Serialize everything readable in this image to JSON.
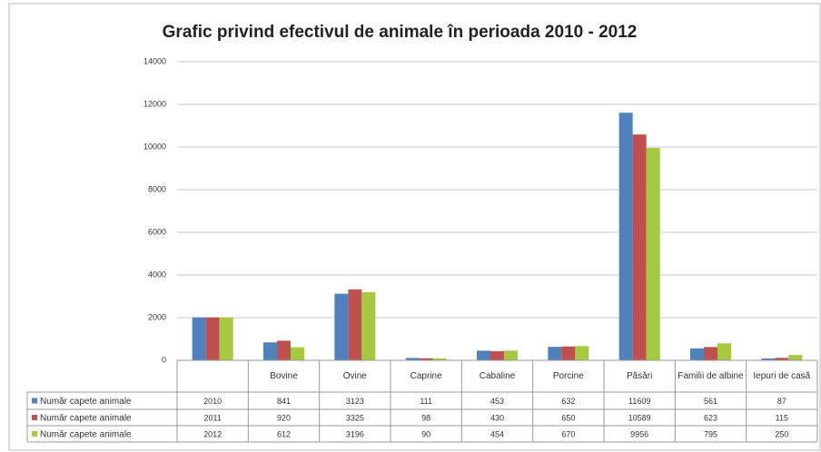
{
  "chart_data": {
    "type": "bar",
    "title": "Grafic privind efectivul de animale în perioada 2010 - 2012",
    "categories": [
      null,
      "Bovine",
      "Ovine",
      "Caprine",
      "Cabaline",
      "Porcine",
      "Păsări",
      "Familii de albine",
      "Iepuri de casă"
    ],
    "series": [
      {
        "name": "Număr capete animale",
        "color": "#4f81bd",
        "values": [
          2010,
          841,
          3123,
          111,
          453,
          632,
          11609,
          561,
          87
        ]
      },
      {
        "name": "Număr capete animale",
        "color": "#c0504d",
        "values": [
          2011,
          920,
          3325,
          98,
          430,
          650,
          10589,
          623,
          115
        ]
      },
      {
        "name": "Număr capete animale",
        "color": "#a5c940",
        "values": [
          2012,
          612,
          3196,
          90,
          454,
          670,
          9956,
          795,
          250
        ]
      }
    ],
    "ylim": [
      0,
      14000
    ],
    "yticks": [
      0,
      2000,
      4000,
      6000,
      8000,
      10000,
      12000,
      14000
    ],
    "grid": true,
    "data_table": true
  }
}
